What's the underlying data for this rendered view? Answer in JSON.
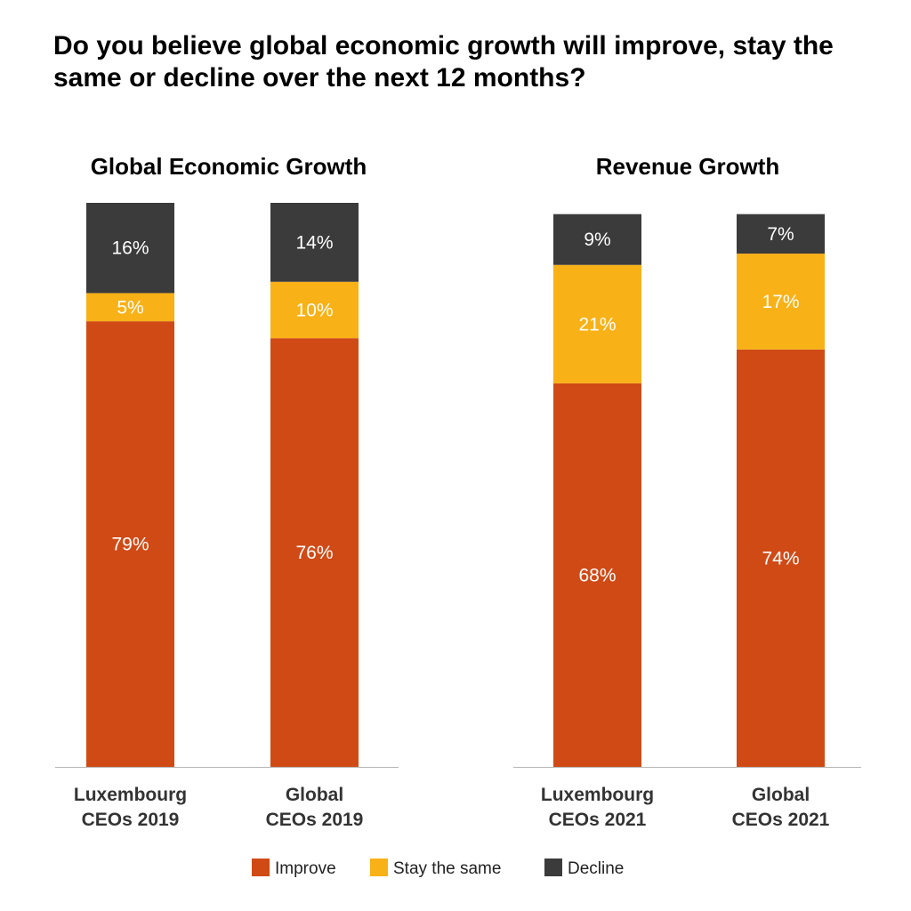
{
  "title": "Do you believe global economic growth will improve, stay the same or decline over the next 12 months?",
  "legend": [
    {
      "key": "improve",
      "label": "Improve",
      "color": "#D04A16"
    },
    {
      "key": "same",
      "label": "Stay the same",
      "color": "#F8B116"
    },
    {
      "key": "decline",
      "label": "Decline",
      "color": "#3B3B3B"
    }
  ],
  "chart_data": [
    {
      "type": "bar",
      "stacked": true,
      "title": "Global Economic Growth",
      "categories": [
        [
          "Luxembourg",
          "CEOs 2019"
        ],
        [
          "Global",
          "CEOs 2019"
        ]
      ],
      "series": [
        {
          "name": "Improve",
          "values": [
            79,
            76
          ],
          "labels": [
            "79%",
            "76%"
          ]
        },
        {
          "name": "Stay the same",
          "values": [
            5,
            10
          ],
          "labels": [
            "5%",
            "10%"
          ]
        },
        {
          "name": "Decline",
          "values": [
            16,
            14
          ],
          "labels": [
            "16%",
            "14%"
          ]
        }
      ],
      "ylim": [
        0,
        100
      ]
    },
    {
      "type": "bar",
      "stacked": true,
      "title": "Revenue Growth",
      "categories": [
        [
          "Luxembourg",
          "CEOs 2021"
        ],
        [
          "Global",
          "CEOs 2021"
        ]
      ],
      "series": [
        {
          "name": "Improve",
          "values": [
            68,
            74
          ],
          "labels": [
            "68%",
            "74%"
          ]
        },
        {
          "name": "Stay the same",
          "values": [
            21,
            17
          ],
          "labels": [
            "21%",
            "17%"
          ]
        },
        {
          "name": "Decline",
          "values": [
            9,
            7
          ],
          "labels": [
            "9%",
            "7%"
          ]
        }
      ],
      "ylim": [
        0,
        100
      ]
    }
  ]
}
